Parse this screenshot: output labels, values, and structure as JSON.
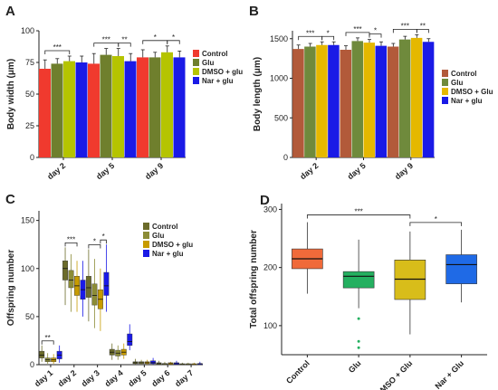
{
  "panels": {
    "A": {
      "letter": "A"
    },
    "B": {
      "letter": "B"
    },
    "C": {
      "letter": "C"
    },
    "D": {
      "letter": "D"
    }
  },
  "chart_data": [
    {
      "id": "A",
      "type": "bar",
      "ylabel": "Body width (μm)",
      "xlabel": "",
      "ylim": [
        0,
        100
      ],
      "yticks": [
        0,
        25,
        50,
        75,
        100
      ],
      "categories": [
        "day 2",
        "day 5",
        "day 9"
      ],
      "legend_position": "right",
      "series": [
        {
          "name": "Control",
          "color": "#f03a2e",
          "values": [
            70,
            74,
            79
          ],
          "err": [
            7,
            8,
            6
          ]
        },
        {
          "name": "Glu",
          "color": "#6f7f2d",
          "values": [
            74,
            81,
            79
          ],
          "err": [
            4,
            5,
            4
          ]
        },
        {
          "name": "DMSO + glu",
          "color": "#b5c400",
          "values": [
            76,
            80,
            83
          ],
          "err": [
            4,
            6,
            5
          ]
        },
        {
          "name": "Nar + glu",
          "color": "#1a1ae6",
          "values": [
            75,
            76,
            79
          ],
          "err": [
            5,
            6,
            5
          ]
        }
      ],
      "annotations": [
        {
          "category": "day 2",
          "from": 0,
          "to": 2,
          "text": "***"
        },
        {
          "category": "day 5",
          "from": 0,
          "to": 2,
          "text": "***"
        },
        {
          "category": "day 5",
          "from": 2,
          "to": 3,
          "text": "**"
        },
        {
          "category": "day 9",
          "from": 0,
          "to": 2,
          "text": "*"
        },
        {
          "category": "day 9",
          "from": 2,
          "to": 3,
          "text": "*"
        }
      ]
    },
    {
      "id": "B",
      "type": "bar",
      "ylabel": "Body length (μm)",
      "xlabel": "",
      "ylim": [
        0,
        1600
      ],
      "yticks": [
        0,
        500,
        1000,
        1500
      ],
      "categories": [
        "day 2",
        "day 5",
        "day 9"
      ],
      "legend_position": "right",
      "series": [
        {
          "name": "Control",
          "color": "#b25a3a",
          "values": [
            1370,
            1360,
            1400
          ],
          "err": [
            50,
            50,
            40
          ]
        },
        {
          "name": "Glu",
          "color": "#6f8a3c",
          "values": [
            1400,
            1470,
            1490
          ],
          "err": [
            40,
            40,
            40
          ]
        },
        {
          "name": "DMSO + Glu",
          "color": "#e5b800",
          "values": [
            1420,
            1450,
            1510
          ],
          "err": [
            40,
            40,
            40
          ]
        },
        {
          "name": "Nar + glu",
          "color": "#1a1ae6",
          "values": [
            1420,
            1410,
            1460
          ],
          "err": [
            40,
            50,
            40
          ]
        }
      ],
      "annotations": [
        {
          "category": "day 2",
          "from": 0,
          "to": 2,
          "text": "***"
        },
        {
          "category": "day 2",
          "from": 2,
          "to": 3,
          "text": "*"
        },
        {
          "category": "day 5",
          "from": 0,
          "to": 2,
          "text": "***"
        },
        {
          "category": "day 5",
          "from": 2,
          "to": 3,
          "text": "*"
        },
        {
          "category": "day 9",
          "from": 0,
          "to": 2,
          "text": "***"
        },
        {
          "category": "day 9",
          "from": 2,
          "to": 3,
          "text": "**"
        }
      ]
    },
    {
      "id": "C",
      "type": "box",
      "ylabel": "Offspring number",
      "xlabel": "",
      "ylim": [
        0,
        160
      ],
      "yticks": [
        0,
        50,
        100,
        150
      ],
      "categories": [
        "day 1",
        "day 2",
        "day 3",
        "day 4",
        "day 5",
        "day 6",
        "day 7"
      ],
      "legend_position": "top-right",
      "series": [
        {
          "name": "Control",
          "color": "#6b6b2a",
          "boxes": [
            [
              3,
              7,
              10,
              14,
              20
            ],
            [
              62,
              88,
              100,
              108,
              122
            ],
            [
              45,
              70,
              80,
              92,
              120
            ],
            [
              5,
              10,
              13,
              16,
              22
            ],
            [
              0,
              1,
              2,
              3,
              6
            ],
            [
              0,
              0,
              1,
              2,
              4
            ],
            [
              0,
              0,
              0,
              1,
              2
            ]
          ]
        },
        {
          "name": "Glu",
          "color": "#8c8c36",
          "boxes": [
            [
              1,
              3,
              5,
              7,
              12
            ],
            [
              55,
              80,
              88,
              98,
              115
            ],
            [
              38,
              62,
              72,
              84,
              110
            ],
            [
              5,
              9,
              12,
              15,
              20
            ],
            [
              0,
              1,
              2,
              3,
              5
            ],
            [
              0,
              0,
              1,
              1,
              3
            ],
            [
              0,
              0,
              0,
              1,
              2
            ]
          ]
        },
        {
          "name": "DMSO + glu",
          "color": "#c79b00",
          "boxes": [
            [
              1,
              3,
              5,
              7,
              11
            ],
            [
              55,
              72,
              82,
              92,
              108
            ],
            [
              35,
              58,
              68,
              78,
              100
            ],
            [
              6,
              10,
              13,
              16,
              22
            ],
            [
              0,
              1,
              2,
              3,
              5
            ],
            [
              0,
              0,
              1,
              2,
              3
            ],
            [
              0,
              0,
              0,
              1,
              2
            ]
          ]
        },
        {
          "name": "Nar + glu",
          "color": "#1a1ae6",
          "boxes": [
            [
              2,
              6,
              10,
              14,
              20
            ],
            [
              50,
              68,
              78,
              88,
              108
            ],
            [
              55,
              72,
              82,
              96,
              125
            ],
            [
              15,
              20,
              24,
              32,
              42
            ],
            [
              0,
              1,
              2,
              4,
              7
            ],
            [
              0,
              0,
              1,
              2,
              4
            ],
            [
              0,
              0,
              1,
              1,
              3
            ]
          ]
        }
      ],
      "annotations": [
        {
          "category": "day 1",
          "from": 0,
          "to": 2,
          "text": "**"
        },
        {
          "category": "day 2",
          "from": 0,
          "to": 2,
          "text": "***"
        },
        {
          "category": "day 3",
          "from": 0,
          "to": 2,
          "text": "*"
        },
        {
          "category": "day 3",
          "from": 2,
          "to": 3,
          "text": "*"
        }
      ]
    },
    {
      "id": "D",
      "type": "box",
      "ylabel": "Total offspring number",
      "xlabel": "",
      "ylim": [
        50,
        310
      ],
      "yticks": [
        100,
        200,
        300
      ],
      "categories": [
        "Control",
        "Glu",
        "DMSO + Glu",
        "Nar + Glu"
      ],
      "series": [
        {
          "name": "Control",
          "color": "#f06a3a",
          "box": [
            155,
            198,
            215,
            232,
            278
          ]
        },
        {
          "name": "Glu",
          "color": "#24b060",
          "box": [
            130,
            165,
            185,
            193,
            248
          ],
          "outliers": [
            112,
            73,
            62
          ]
        },
        {
          "name": "DMSO + Glu",
          "color": "#d8bd1a",
          "box": [
            85,
            145,
            180,
            213,
            262
          ]
        },
        {
          "name": "Nar + Glu",
          "color": "#1f6ae6",
          "box": [
            140,
            172,
            205,
            222,
            265
          ]
        }
      ],
      "annotations": [
        {
          "from": 0,
          "to": 2,
          "text": "***"
        },
        {
          "from": 2,
          "to": 3,
          "text": "*"
        }
      ]
    }
  ]
}
